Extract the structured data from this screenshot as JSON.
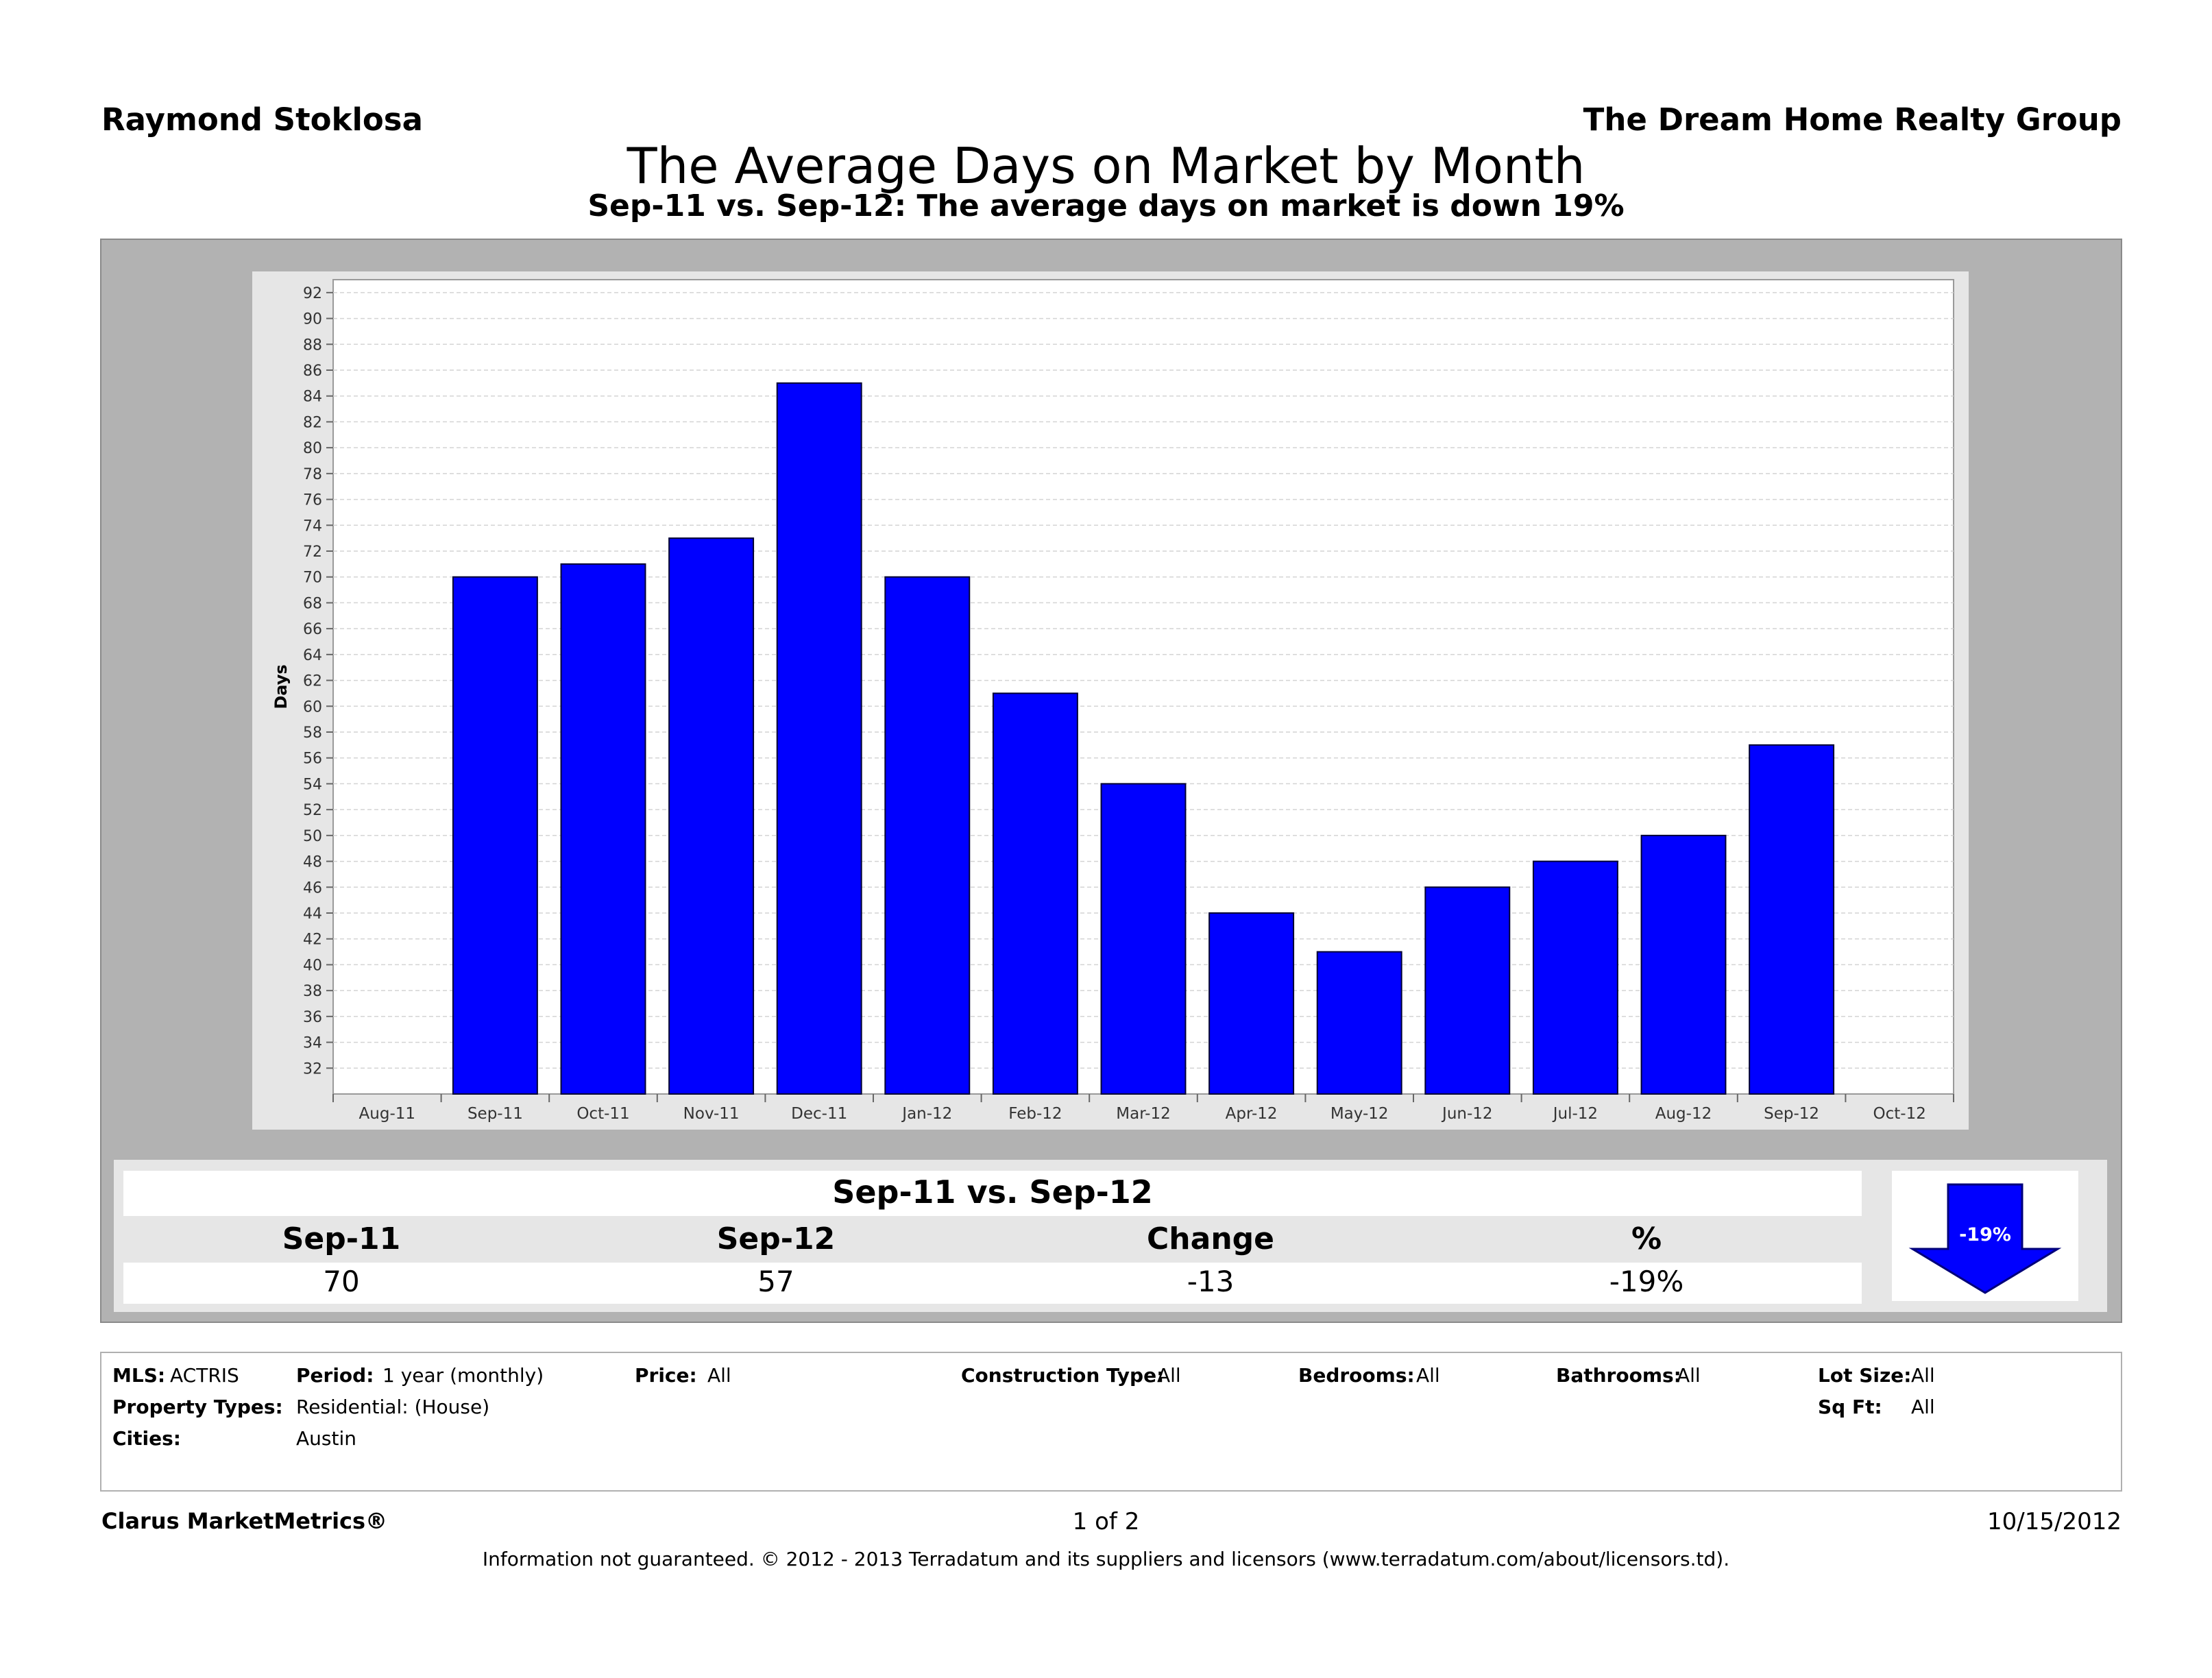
{
  "header": {
    "agent": "Raymond Stoklosa",
    "company": "The Dream Home Realty Group",
    "title": "The Average Days on Market by Month",
    "subtitle": "Sep-11 vs. Sep-12:  The average days on market is down 19%"
  },
  "chart_data": {
    "type": "bar",
    "ylabel": "Days",
    "xlabel": "",
    "ylim": [
      30,
      93
    ],
    "y_ticks": [
      32,
      34,
      36,
      38,
      40,
      42,
      44,
      46,
      48,
      50,
      52,
      54,
      56,
      58,
      60,
      62,
      64,
      66,
      68,
      70,
      72,
      74,
      76,
      78,
      80,
      82,
      84,
      86,
      88,
      90,
      92
    ],
    "x_ticks": [
      "Aug-11",
      "Sep-11",
      "Oct-11",
      "Nov-11",
      "Dec-11",
      "Jan-12",
      "Feb-12",
      "Mar-12",
      "Apr-12",
      "May-12",
      "Jun-12",
      "Jul-12",
      "Aug-12",
      "Sep-12",
      "Oct-12"
    ],
    "categories": [
      "Sep-11",
      "Oct-11",
      "Nov-11",
      "Dec-11",
      "Jan-12",
      "Feb-12",
      "Mar-12",
      "Apr-12",
      "May-12",
      "Jun-12",
      "Jul-12",
      "Aug-12",
      "Sep-12"
    ],
    "values": [
      70,
      71,
      73,
      85,
      70,
      61,
      54,
      44,
      41,
      46,
      48,
      50,
      57
    ],
    "bar_color": "#0000ff",
    "grid": true,
    "legend": "none"
  },
  "comparison": {
    "title": "Sep-11 vs. Sep-12",
    "headers": [
      "Sep-11",
      "Sep-12",
      "Change",
      "%"
    ],
    "values": [
      "70",
      "57",
      "-13",
      "-19%"
    ],
    "badge": "-19%",
    "arrow_color": "#0000ff"
  },
  "filters": {
    "mls_label": "MLS:",
    "mls_value": "ACTRIS",
    "period_label": "Period:",
    "period_value": "1 year (monthly)",
    "price_label": "Price:",
    "price_value": "All",
    "construction_label": "Construction Type:",
    "construction_value": "All",
    "bedrooms_label": "Bedrooms:",
    "bedrooms_value": "All",
    "bathrooms_label": "Bathrooms:",
    "bathrooms_value": "All",
    "lotsize_label": "Lot Size:",
    "lotsize_value": "All",
    "proptypes_label": "Property Types:",
    "proptypes_value": "Residential: (House)",
    "sqft_label": "Sq Ft:",
    "sqft_value": "All",
    "cities_label": "Cities:",
    "cities_value": "Austin"
  },
  "footer": {
    "brand": "Clarus MarketMetrics®",
    "page": "1 of 2",
    "date": "10/15/2012",
    "disclaimer": "Information not guaranteed.  © 2012 - 2013 Terradatum and its suppliers and licensors (www.terradatum.com/about/licensors.td)."
  }
}
